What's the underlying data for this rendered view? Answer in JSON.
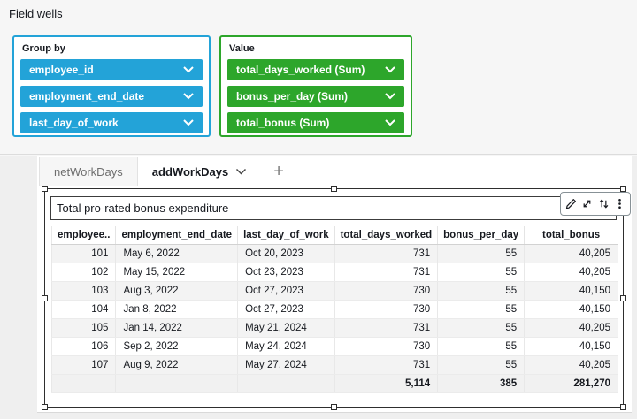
{
  "panel": {
    "title": "Field wells"
  },
  "field_wells": {
    "group_by": {
      "label": "Group by",
      "color": "#23a3d8",
      "items": [
        "employee_id",
        "employment_end_date",
        "last_day_of_work"
      ]
    },
    "value": {
      "label": "Value",
      "color": "#2da62b",
      "items": [
        "total_days_worked (Sum)",
        "bonus_per_day (Sum)",
        "total_bonus (Sum)"
      ]
    }
  },
  "sheet": {
    "tabs": [
      {
        "label": "netWorkDays"
      },
      {
        "label": "addWorkDays"
      }
    ],
    "add_tab": "+"
  },
  "visual": {
    "title": "Total pro-rated bonus expenditure",
    "toolbar_icons": [
      "edit-icon",
      "maximize-icon",
      "swap-axes-icon",
      "menu-icon"
    ],
    "table": {
      "columns": [
        "employee..",
        "employment_end_date",
        "last_day_of_work",
        "total_days_worked",
        "bonus_per_day",
        "total_bonus"
      ],
      "rows": [
        [
          "101",
          "May 6, 2022",
          "Oct 20, 2023",
          "731",
          "55",
          "40,205"
        ],
        [
          "102",
          "May 15, 2022",
          "Oct 23, 2023",
          "731",
          "55",
          "40,205"
        ],
        [
          "103",
          "Aug 3, 2022",
          "Oct 27, 2023",
          "730",
          "55",
          "40,150"
        ],
        [
          "104",
          "Jan 8, 2022",
          "Oct 27, 2023",
          "730",
          "55",
          "40,150"
        ],
        [
          "105",
          "Jan 14, 2022",
          "May 21, 2024",
          "731",
          "55",
          "40,205"
        ],
        [
          "106",
          "Sep 2, 2022",
          "May 24, 2024",
          "730",
          "55",
          "40,150"
        ],
        [
          "107",
          "Aug 9, 2022",
          "May 27, 2024",
          "731",
          "55",
          "40,205"
        ]
      ],
      "totals": [
        "",
        "",
        "",
        "5,114",
        "385",
        "281,270"
      ]
    }
  }
}
